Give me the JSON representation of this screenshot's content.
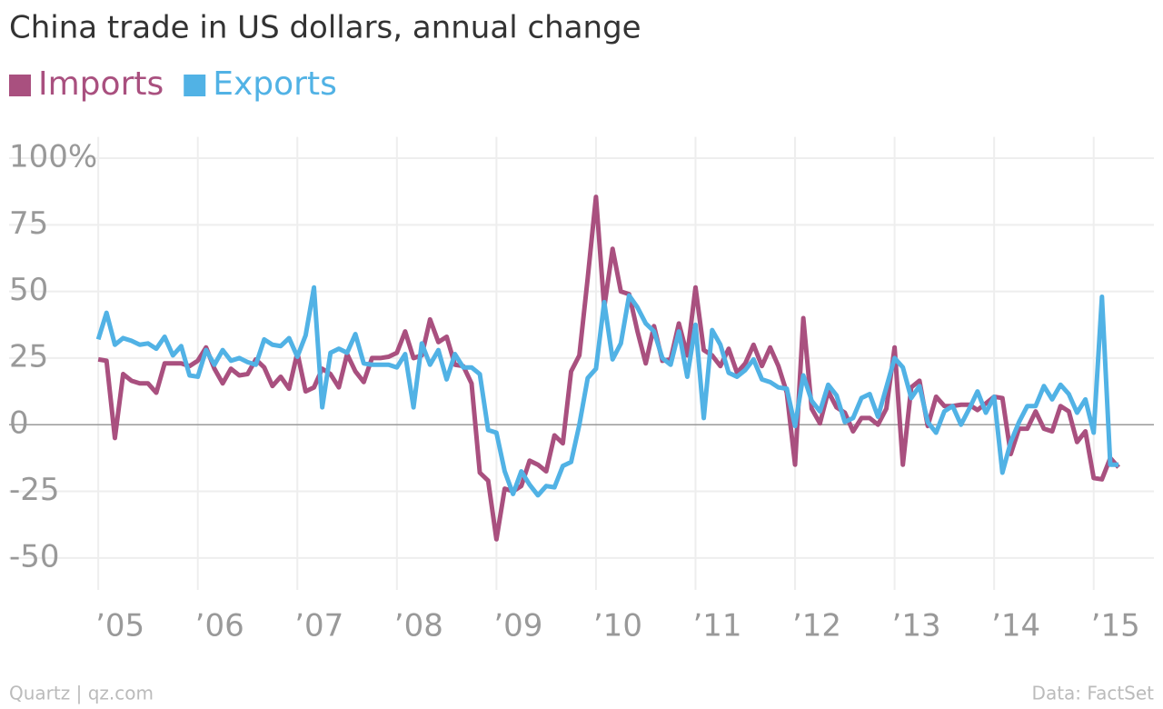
{
  "chart_data": {
    "type": "line",
    "title": "China trade in US dollars, annual change",
    "source": "Data: FactSet",
    "credit": "Quartz | qz.com",
    "x": [
      2005,
      2005.083,
      2005.167,
      2005.25,
      2005.333,
      2005.417,
      2005.5,
      2005.583,
      2005.667,
      2005.75,
      2005.833,
      2005.917,
      2006,
      2006.083,
      2006.167,
      2006.25,
      2006.333,
      2006.417,
      2006.5,
      2006.583,
      2006.667,
      2006.75,
      2006.833,
      2006.917,
      2007,
      2007.083,
      2007.167,
      2007.25,
      2007.333,
      2007.417,
      2007.5,
      2007.583,
      2007.667,
      2007.75,
      2007.833,
      2007.917,
      2008,
      2008.083,
      2008.167,
      2008.25,
      2008.333,
      2008.417,
      2008.5,
      2008.583,
      2008.667,
      2008.75,
      2008.833,
      2008.917,
      2009,
      2009.083,
      2009.167,
      2009.25,
      2009.333,
      2009.417,
      2009.5,
      2009.583,
      2009.667,
      2009.75,
      2009.833,
      2009.917,
      2010,
      2010.083,
      2010.167,
      2010.25,
      2010.333,
      2010.417,
      2010.5,
      2010.583,
      2010.667,
      2010.75,
      2010.833,
      2010.917,
      2011,
      2011.083,
      2011.167,
      2011.25,
      2011.333,
      2011.417,
      2011.5,
      2011.583,
      2011.667,
      2011.75,
      2011.833,
      2011.917,
      2012,
      2012.083,
      2012.167,
      2012.25,
      2012.333,
      2012.417,
      2012.5,
      2012.583,
      2012.667,
      2012.75,
      2012.833,
      2012.917,
      2013,
      2013.083,
      2013.167,
      2013.25,
      2013.333,
      2013.417,
      2013.5,
      2013.583,
      2013.667,
      2013.75,
      2013.833,
      2013.917,
      2014,
      2014.083,
      2014.167,
      2014.25,
      2014.333,
      2014.417,
      2014.5,
      2014.583,
      2014.667,
      2014.75,
      2014.833,
      2014.917,
      2015,
      2015.083,
      2015.167,
      2015.25
    ],
    "series": [
      {
        "name": "Imports",
        "color": "#a9507f",
        "values": [
          24.5,
          24,
          -5,
          19,
          16.5,
          15.5,
          15.5,
          12,
          23,
          23,
          23,
          22,
          24,
          29,
          21,
          15.5,
          21,
          18.5,
          19,
          24.5,
          21.5,
          14.5,
          18,
          13.5,
          27,
          12.5,
          14,
          21,
          19,
          14,
          26.5,
          20,
          16,
          25,
          25,
          25.5,
          27,
          35,
          25,
          26,
          39.5,
          31,
          33,
          22.5,
          22,
          15.5,
          -18,
          -21,
          -43,
          -24,
          -25,
          -23,
          -13.5,
          -15,
          -17.5,
          -4,
          -7,
          20,
          26,
          55,
          85.5,
          44,
          66,
          50,
          49,
          35,
          23,
          37,
          24,
          24.5,
          38,
          26,
          51.5,
          28,
          26,
          22,
          28.5,
          19.5,
          23,
          30,
          22,
          29,
          22,
          12,
          -15,
          40,
          6,
          0.5,
          12.5,
          6.5,
          4.5,
          -2.5,
          2.5,
          2.5,
          0,
          6,
          29,
          -15,
          14,
          16.5,
          -0.5,
          10.5,
          7,
          7,
          7.5,
          7.5,
          5.5,
          8,
          10.5,
          10,
          -11,
          -1.5,
          -1.5,
          5,
          -1.5,
          -2.5,
          7,
          5,
          -6.5,
          -2.5,
          -20,
          -20.5,
          -12.5,
          -16
        ]
      },
      {
        "name": "Exports",
        "color": "#51b2e5",
        "values": [
          32,
          42,
          30,
          32.5,
          31.5,
          30,
          30.5,
          28.5,
          33,
          26,
          29.5,
          18.5,
          18,
          28,
          22.5,
          28,
          24,
          25,
          23.5,
          22.5,
          32,
          30,
          29.5,
          32.5,
          25.5,
          33.5,
          51.5,
          6.5,
          27,
          28.5,
          27,
          34,
          23,
          22.5,
          22.5,
          22.5,
          21.5,
          26.5,
          6.5,
          30.5,
          22.5,
          28,
          17,
          26.5,
          21.5,
          21.5,
          19,
          -2,
          -3,
          -17.5,
          -26,
          -17.5,
          -22.5,
          -26.5,
          -23,
          -23.5,
          -15.5,
          -14,
          0,
          17.5,
          21,
          46,
          24.5,
          30.5,
          48.5,
          44,
          38,
          35,
          25,
          22.5,
          35,
          18,
          37.5,
          2.5,
          35.5,
          30,
          19.5,
          18,
          20.5,
          24.5,
          17,
          16,
          14,
          13.5,
          -0.5,
          18.5,
          9,
          5,
          15,
          11,
          1,
          2.5,
          10,
          11.5,
          3,
          14,
          25,
          21.5,
          10,
          14.5,
          1,
          -3,
          5,
          7,
          0,
          6,
          12.5,
          4.5,
          10.5,
          -18,
          -6.5,
          1,
          7,
          7,
          14.5,
          9.5,
          15,
          11.5,
          4.5,
          9.5,
          -3,
          48,
          -15,
          -15
        ]
      }
    ],
    "xlim": [
      2004.88,
      2015.45
    ],
    "xticks": [
      {
        "value": 2005,
        "label": "’05"
      },
      {
        "value": 2006,
        "label": "’06"
      },
      {
        "value": 2007,
        "label": "’07"
      },
      {
        "value": 2008,
        "label": "’08"
      },
      {
        "value": 2009,
        "label": "’09"
      },
      {
        "value": 2010,
        "label": "’10"
      },
      {
        "value": 2011,
        "label": "’11"
      },
      {
        "value": 2012,
        "label": "’12"
      },
      {
        "value": 2013,
        "label": "’13"
      },
      {
        "value": 2014,
        "label": "’14"
      },
      {
        "value": 2015,
        "label": "’15"
      }
    ],
    "ylim": [
      -62,
      108
    ],
    "yticks": [
      {
        "value": 100,
        "label": "100%"
      },
      75,
      50,
      25,
      0,
      -25,
      -50
    ],
    "grid": true
  }
}
